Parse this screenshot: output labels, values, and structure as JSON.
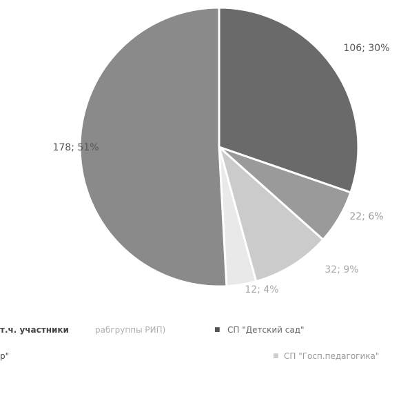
{
  "chart_data": {
    "type": "pie",
    "slices": [
      {
        "value": 106,
        "label": "106; 30%",
        "color": "#6a6a6a",
        "label_color": "#555555"
      },
      {
        "value": 22,
        "label": "22; 6%",
        "color": "#9a9a9a",
        "label_color": "#9a9a9a"
      },
      {
        "value": 32,
        "label": "32; 9%",
        "color": "#cbcbcb",
        "label_color": "#a9a9a9"
      },
      {
        "value": 12,
        "label": "12; 4%",
        "color": "#e9e9e9",
        "label_color": "#a9a9a9"
      },
      {
        "value": 178,
        "label": "178; 51%",
        "color": "#8a8a8a",
        "label_color": "#555555"
      }
    ]
  },
  "legend": {
    "row1": {
      "part1": "т.ч. участники",
      "part2": "рабгруппы РИП)",
      "marker": "■",
      "part3": "СП \"Детский сад\""
    },
    "row2": {
      "part1": "р\"",
      "marker": "■",
      "part2": "СП \"Госп.педагогика\""
    }
  }
}
